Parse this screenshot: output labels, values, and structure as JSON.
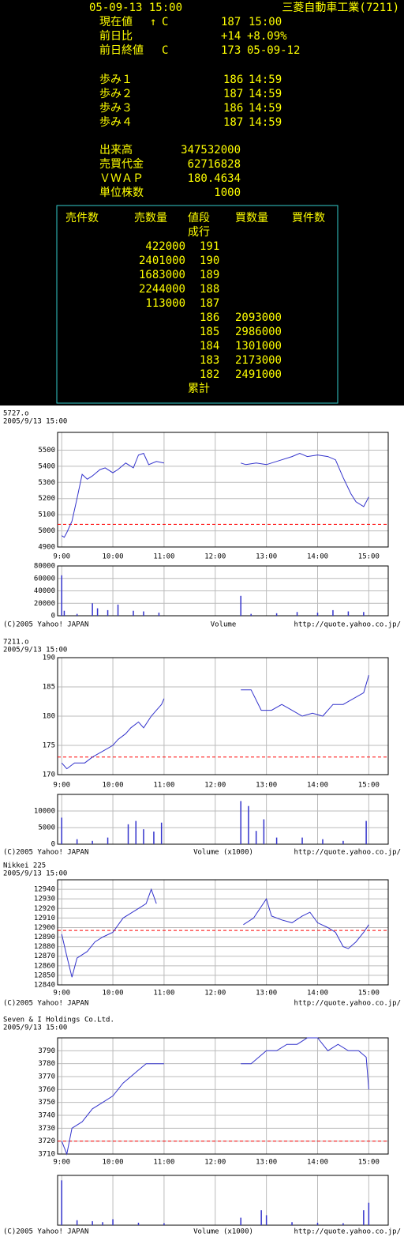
{
  "header": {
    "timestamp": "05-09-13 15:00",
    "company": "三菱自動車工業(7211)"
  },
  "current": {
    "label": "現在値",
    "arrow": "↑",
    "flag": "C",
    "price": 187,
    "time": "15:00"
  },
  "change": {
    "label": "前日比",
    "amount": "+14",
    "percent": "+8.09%"
  },
  "prev_close": {
    "label": "前日終値",
    "flag": "C",
    "price": 173,
    "date": "05-09-12"
  },
  "ticks": [
    {
      "label": "歩み１",
      "price": 186,
      "time": "14:59"
    },
    {
      "label": "歩み２",
      "price": 187,
      "time": "14:59"
    },
    {
      "label": "歩み３",
      "price": 186,
      "time": "14:59"
    },
    {
      "label": "歩み４",
      "price": 187,
      "time": "14:59"
    }
  ],
  "stats": [
    {
      "label": "出来高",
      "value": 347532000
    },
    {
      "label": "売買代金",
      "value": 62716828
    },
    {
      "label": "ＶＷＡＰ",
      "value": 180.4634
    },
    {
      "label": "単位株数",
      "value": 1000
    }
  ],
  "board": {
    "headers": [
      "売件数",
      "売数量",
      "値段",
      "買数量",
      "買件数"
    ],
    "market_order": "成行",
    "total": "累計",
    "border_color": "#33cccc",
    "rows": [
      {
        "sell_qty": 422000,
        "price": 191,
        "buy_qty": null,
        "color": "#ffff00"
      },
      {
        "sell_qty": 2401000,
        "price": 190,
        "buy_qty": null,
        "color": "#ffff00"
      },
      {
        "sell_qty": 1683000,
        "price": 189,
        "buy_qty": null,
        "color": "#ffff00"
      },
      {
        "sell_qty": 2244000,
        "price": 188,
        "buy_qty": null,
        "color": "#ffff00"
      },
      {
        "sell_qty": 113000,
        "price": 187,
        "buy_qty": null,
        "color": "#33ff33"
      },
      {
        "sell_qty": null,
        "price": 186,
        "buy_qty": 2093000,
        "color": "#ff3333"
      },
      {
        "sell_qty": null,
        "price": 185,
        "buy_qty": 2986000,
        "color": "#ffff00"
      },
      {
        "sell_qty": null,
        "price": 184,
        "buy_qty": 1301000,
        "color": "#ffff00"
      },
      {
        "sell_qty": null,
        "price": 183,
        "buy_qty": 2173000,
        "color": "#ffff00"
      },
      {
        "sell_qty": null,
        "price": 182,
        "buy_qty": 2491000,
        "color": "#ffff00"
      }
    ]
  },
  "chart_data": [
    {
      "type": "line",
      "title": "5727.o",
      "subtitle": "2005/9/13 15:00",
      "color": "#3333cc",
      "grid": true,
      "reference_line": 5040,
      "reference_color": "#ff0000",
      "x": [
        9.0,
        9.05,
        9.1,
        9.2,
        9.3,
        9.4,
        9.5,
        9.6,
        9.75,
        9.85,
        10.0,
        10.1,
        10.25,
        10.4,
        10.5,
        10.6,
        10.7,
        10.85,
        11.0,
        11.5,
        12.5,
        12.6,
        12.8,
        13.0,
        13.3,
        13.5,
        13.65,
        13.8,
        14.0,
        14.2,
        14.35,
        14.5,
        14.65,
        14.75,
        14.9,
        15.0
      ],
      "values": [
        4970,
        4960,
        4990,
        5060,
        5200,
        5350,
        5320,
        5340,
        5380,
        5390,
        5360,
        5380,
        5420,
        5390,
        5470,
        5480,
        5410,
        5430,
        5420,
        null,
        5420,
        5410,
        5420,
        5410,
        5440,
        5460,
        5480,
        5460,
        5470,
        5460,
        5440,
        5330,
        5230,
        5180,
        5150,
        5210
      ],
      "xlim": [
        8.92,
        15.38
      ],
      "xticks": [
        {
          "value": 9,
          "label": "9:00"
        },
        {
          "value": 10,
          "label": "10:00"
        },
        {
          "value": 11,
          "label": "11:00"
        },
        {
          "value": 12,
          "label": "12:00"
        },
        {
          "value": 13,
          "label": "13:00"
        },
        {
          "value": 14,
          "label": "14:00"
        },
        {
          "value": 15,
          "label": "15:00"
        }
      ],
      "ylim": [
        4900,
        5610
      ],
      "yticks": [
        4900,
        5000,
        5100,
        5200,
        5300,
        5400,
        5500
      ],
      "volume": {
        "type": "bar",
        "label": "Volume",
        "x": [
          9.0,
          9.05,
          9.3,
          9.6,
          9.7,
          9.9,
          10.1,
          10.4,
          10.6,
          10.9,
          12.5,
          12.7,
          13.2,
          13.6,
          14.0,
          14.3,
          14.6,
          14.9
        ],
        "values": [
          65000,
          8000,
          3000,
          20000,
          12000,
          9000,
          18000,
          8000,
          7000,
          5000,
          32000,
          3000,
          4000,
          6000,
          5000,
          9000,
          7000,
          6000
        ],
        "ylim": [
          0,
          80000
        ],
        "yticks": [
          0,
          20000,
          40000,
          60000,
          80000
        ]
      },
      "copyright": "(C)2005 Yahoo! JAPAN",
      "url": "http://quote.yahoo.co.jp/"
    },
    {
      "type": "line",
      "title": "7211.o",
      "subtitle": "2005/9/13 15:00",
      "color": "#3333cc",
      "grid": true,
      "reference_line": 173,
      "reference_color": "#ff0000",
      "x": [
        9.0,
        9.1,
        9.25,
        9.45,
        9.6,
        9.8,
        10.0,
        10.1,
        10.25,
        10.35,
        10.5,
        10.6,
        10.75,
        10.85,
        10.95,
        11.0,
        11.5,
        12.5,
        12.7,
        12.9,
        13.1,
        13.3,
        13.5,
        13.7,
        13.9,
        14.1,
        14.3,
        14.5,
        14.7,
        14.9,
        15.0
      ],
      "values": [
        172,
        171,
        172,
        172,
        173,
        174,
        175,
        176,
        177,
        178,
        179,
        178,
        180,
        181,
        182,
        183,
        null,
        184.5,
        184.5,
        181,
        181,
        182,
        181,
        180,
        180.5,
        180,
        182,
        182,
        183,
        184,
        187
      ],
      "xlim": [
        8.92,
        15.38
      ],
      "xticks": [
        {
          "value": 9,
          "label": "9:00"
        },
        {
          "value": 10,
          "label": "10:00"
        },
        {
          "value": 11,
          "label": "11:00"
        },
        {
          "value": 12,
          "label": "12:00"
        },
        {
          "value": 13,
          "label": "13:00"
        },
        {
          "value": 14,
          "label": "14:00"
        },
        {
          "value": 15,
          "label": "15:00"
        }
      ],
      "ylim": [
        170,
        190
      ],
      "yticks": [
        170,
        175,
        180,
        185,
        190
      ],
      "volume": {
        "type": "bar",
        "label": "Volume (x1000)",
        "x": [
          9.0,
          9.3,
          9.6,
          9.9,
          10.3,
          10.45,
          10.6,
          10.8,
          10.95,
          12.5,
          12.65,
          12.8,
          12.95,
          13.2,
          13.7,
          14.1,
          14.5,
          14.95
        ],
        "values": [
          8000,
          1500,
          1000,
          2000,
          6000,
          7000,
          4500,
          3800,
          6500,
          13000,
          11500,
          4000,
          7500,
          2000,
          2000,
          1500,
          1000,
          7000
        ],
        "ylim": [
          0,
          15000
        ],
        "yticks": [
          0,
          5000,
          10000
        ]
      },
      "copyright": "(C)2005 Yahoo! JAPAN",
      "url": "http://quote.yahoo.co.jp/"
    },
    {
      "type": "line",
      "title": "Nikkei 225",
      "subtitle": "2005/9/13 15:00",
      "color": "#3333cc",
      "grid": true,
      "reference_line": 12897,
      "reference_color": "#ff0000",
      "x": [
        9.0,
        9.1,
        9.2,
        9.3,
        9.5,
        9.65,
        9.8,
        10.0,
        10.2,
        10.35,
        10.5,
        10.65,
        10.75,
        10.85,
        11.5,
        12.55,
        12.75,
        12.9,
        13.0,
        13.1,
        13.3,
        13.5,
        13.7,
        13.85,
        14.0,
        14.2,
        14.35,
        14.5,
        14.6,
        14.75,
        14.9,
        15.0
      ],
      "values": [
        12893,
        12870,
        12848,
        12868,
        12875,
        12885,
        12890,
        12895,
        12910,
        12915,
        12920,
        12925,
        12940,
        12925,
        null,
        12903,
        12910,
        12922,
        12930,
        12912,
        12908,
        12905,
        12912,
        12916,
        12905,
        12900,
        12895,
        12880,
        12878,
        12885,
        12895,
        12903
      ],
      "xlim": [
        8.92,
        15.38
      ],
      "xticks": [
        {
          "value": 9,
          "label": "9:00"
        },
        {
          "value": 10,
          "label": "10:00"
        },
        {
          "value": 11,
          "label": "11:00"
        },
        {
          "value": 12,
          "label": "12:00"
        },
        {
          "value": 13,
          "label": "13:00"
        },
        {
          "value": 14,
          "label": "14:00"
        },
        {
          "value": 15,
          "label": "15:00"
        }
      ],
      "ylim": [
        12840,
        12950
      ],
      "yticks": [
        12840,
        12850,
        12860,
        12870,
        12880,
        12890,
        12900,
        12910,
        12920,
        12930,
        12940
      ],
      "copyright": "(C)2005 Yahoo! JAPAN",
      "url": "http://quote.yahoo.co.jp/"
    },
    {
      "type": "line",
      "title": "Seven & I Holdings Co.Ltd.",
      "subtitle": "2005/9/13 15:00",
      "color": "#3333cc",
      "grid": true,
      "reference_line": 3720,
      "reference_color": "#ff0000",
      "x": [
        9.0,
        9.1,
        9.2,
        9.4,
        9.6,
        9.8,
        10.0,
        10.2,
        10.35,
        10.5,
        10.65,
        10.85,
        11.0,
        11.5,
        12.5,
        12.7,
        12.85,
        13.0,
        13.2,
        13.4,
        13.6,
        13.8,
        14.0,
        14.2,
        14.4,
        14.6,
        14.8,
        14.95,
        15.0
      ],
      "values": [
        3720,
        3710,
        3730,
        3735,
        3745,
        3750,
        3755,
        3765,
        3770,
        3775,
        3780,
        3780,
        3780,
        null,
        3780,
        3780,
        3785,
        3790,
        3790,
        3795,
        3795,
        3800,
        3800,
        3790,
        3795,
        3790,
        3790,
        3785,
        3760
      ],
      "xlim": [
        8.92,
        15.38
      ],
      "xticks": [
        {
          "value": 9,
          "label": "9:00"
        },
        {
          "value": 10,
          "label": "10:00"
        },
        {
          "value": 11,
          "label": "11:00"
        },
        {
          "value": 12,
          "label": "12:00"
        },
        {
          "value": 13,
          "label": "13:00"
        },
        {
          "value": 14,
          "label": "14:00"
        },
        {
          "value": 15,
          "label": "15:00"
        }
      ],
      "ylim": [
        3710,
        3800
      ],
      "yticks": [
        3710,
        3720,
        3730,
        3740,
        3750,
        3760,
        3770,
        3780,
        3790
      ],
      "volume": {
        "type": "bar",
        "label": "Volume (x1000)",
        "x": [
          9.0,
          9.3,
          9.6,
          9.8,
          10.0,
          10.5,
          11.0,
          12.5,
          12.9,
          13.0,
          13.5,
          14.0,
          14.5,
          14.9,
          15.0
        ],
        "values": [
          90,
          10,
          8,
          6,
          12,
          5,
          4,
          15,
          30,
          20,
          6,
          5,
          4,
          30,
          45
        ],
        "ylim": [
          0,
          100
        ]
      },
      "copyright": "(C)2005 Yahoo! JAPAN",
      "url": "http://quote.yahoo.co.jp/"
    }
  ]
}
